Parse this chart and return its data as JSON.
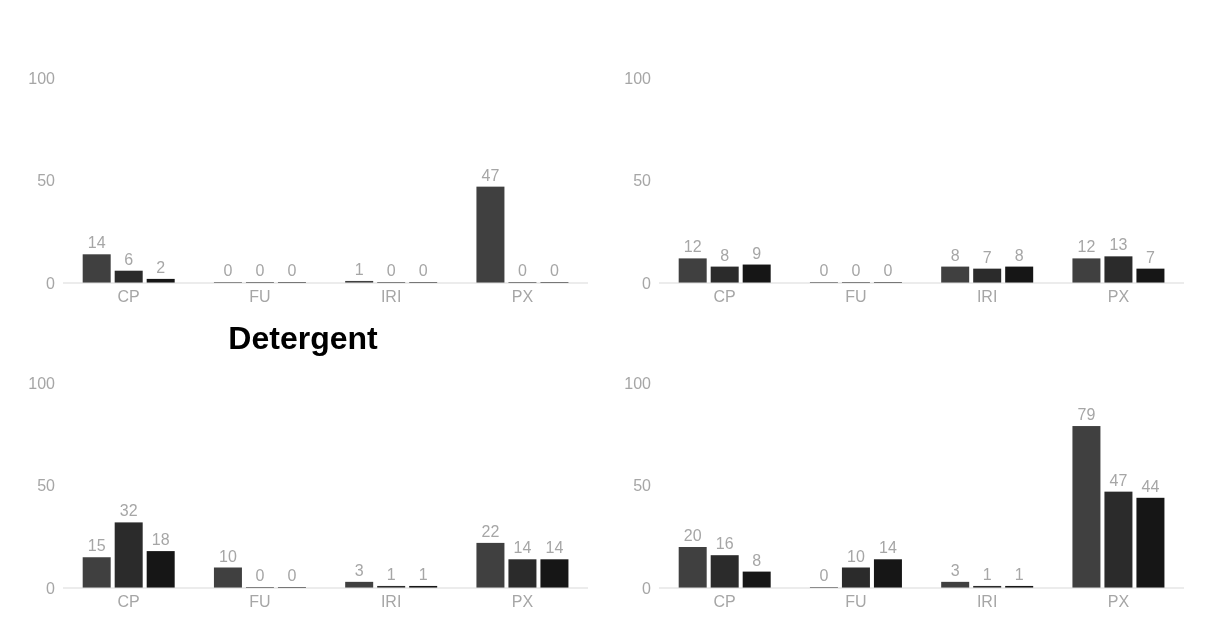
{
  "chart_data": [
    {
      "type": "bar",
      "categories": [
        "CP",
        "FU",
        "IRI",
        "PX"
      ],
      "ylim": [
        0,
        100
      ],
      "yticks": [
        0,
        50,
        100
      ],
      "data_labels": true,
      "series": [
        {
          "color": "#404040",
          "values": [
            14,
            0,
            1,
            47
          ]
        },
        {
          "color": "#2b2b2b",
          "values": [
            6,
            0,
            0,
            0
          ]
        },
        {
          "color": "#161616",
          "values": [
            2,
            0,
            0,
            0
          ]
        }
      ]
    },
    {
      "type": "bar",
      "categories": [
        "CP",
        "FU",
        "IRI",
        "PX"
      ],
      "ylim": [
        0,
        100
      ],
      "yticks": [
        0,
        50,
        100
      ],
      "data_labels": true,
      "series": [
        {
          "color": "#404040",
          "values": [
            12,
            0,
            8,
            12
          ]
        },
        {
          "color": "#2b2b2b",
          "values": [
            8,
            0,
            7,
            13
          ]
        },
        {
          "color": "#161616",
          "values": [
            9,
            0,
            8,
            7
          ]
        }
      ]
    },
    {
      "type": "bar",
      "title": "Detergent",
      "categories": [
        "CP",
        "FU",
        "IRI",
        "PX"
      ],
      "ylim": [
        0,
        100
      ],
      "yticks": [
        0,
        50,
        100
      ],
      "data_labels": true,
      "series": [
        {
          "color": "#404040",
          "values": [
            15,
            10,
            3,
            22
          ]
        },
        {
          "color": "#2b2b2b",
          "values": [
            32,
            0,
            1,
            14
          ]
        },
        {
          "color": "#161616",
          "values": [
            18,
            0,
            1,
            14
          ]
        }
      ]
    },
    {
      "type": "bar",
      "categories": [
        "CP",
        "FU",
        "IRI",
        "PX"
      ],
      "ylim": [
        0,
        100
      ],
      "yticks": [
        0,
        50,
        100
      ],
      "data_labels": true,
      "series": [
        {
          "color": "#404040",
          "values": [
            20,
            0,
            3,
            79
          ]
        },
        {
          "color": "#2b2b2b",
          "values": [
            16,
            10,
            1,
            47
          ]
        },
        {
          "color": "#161616",
          "values": [
            8,
            14,
            1,
            44
          ]
        }
      ]
    }
  ]
}
